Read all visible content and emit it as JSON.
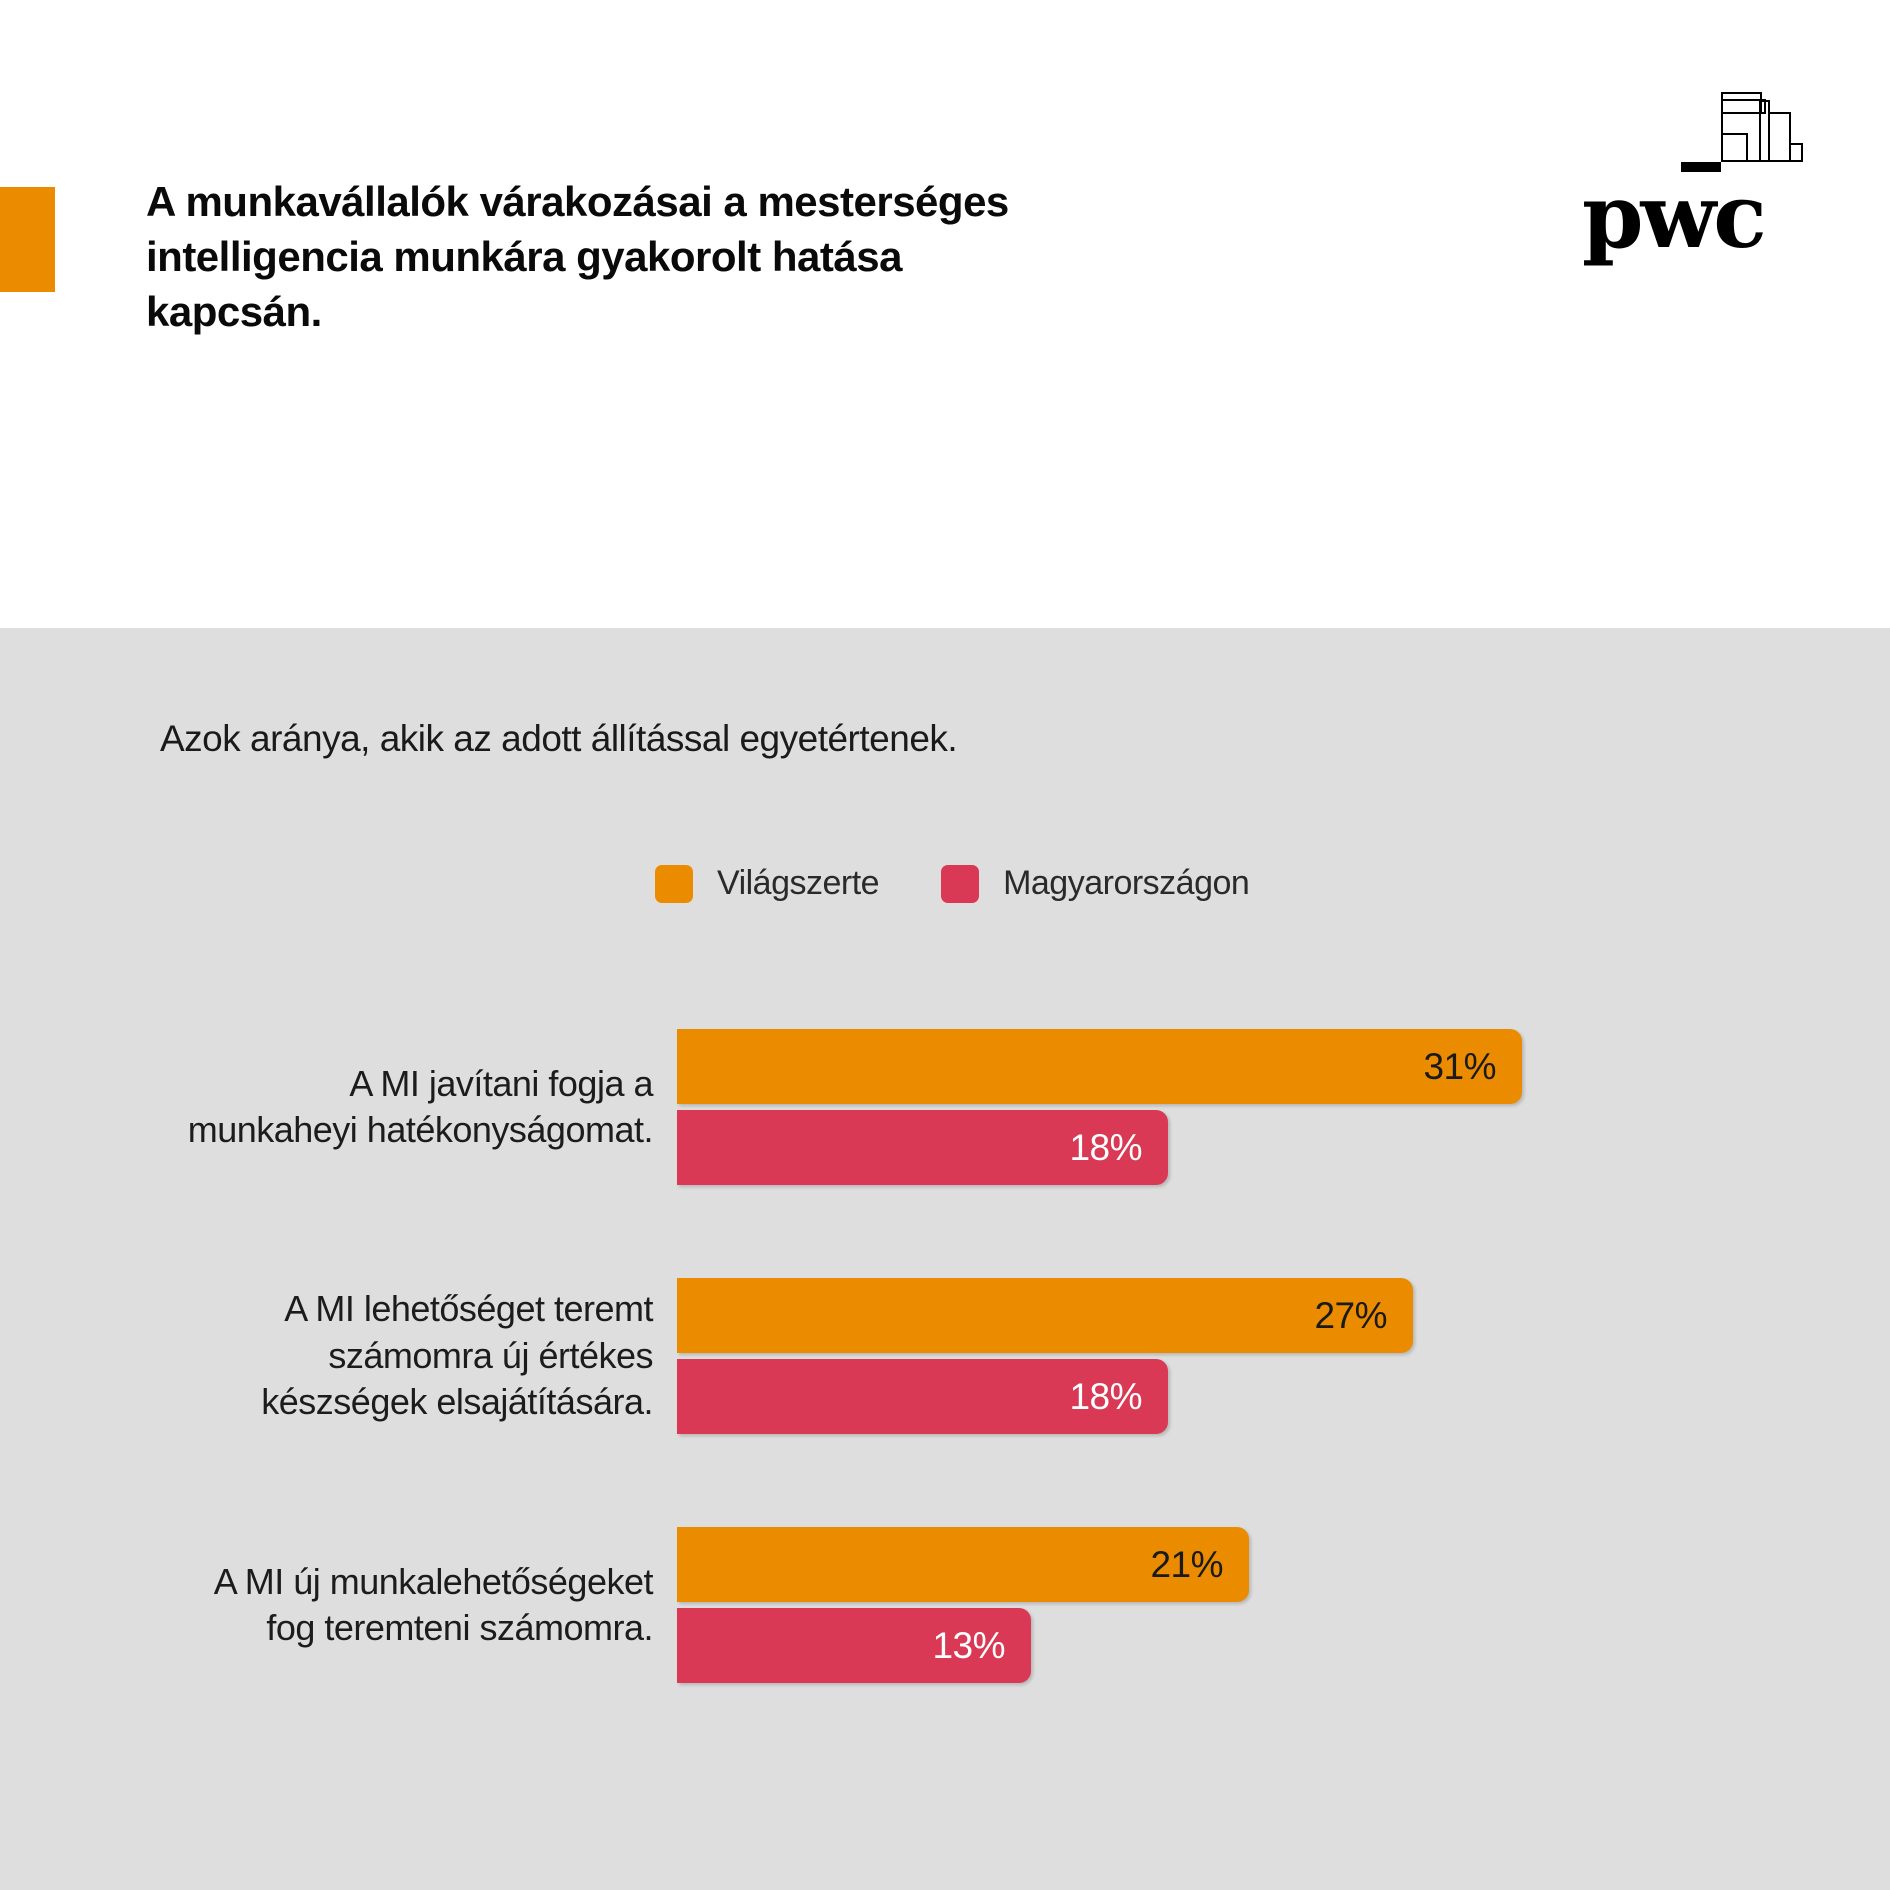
{
  "header": {
    "title": "A munkavállalók várakozásai a mesterséges\nintelligencia munkára gyakorolt hatása\nkapcsán.",
    "logo_text": "pwc"
  },
  "colors": {
    "accent_orange": "#EB8C00",
    "panel_gray": "#DEDEDE"
  },
  "chart_data": {
    "type": "bar",
    "orientation": "horizontal",
    "subtitle": "Azok aránya, akik az adott állítással egyetértenek.",
    "categories": [
      "A MI javítani fogja a\nmunkaheyi hatékonyságomat.",
      "A MI lehetőséget teremt\nszámomra új értékes\nkészségek elsajátítására.",
      "A MI új munkalehetőségeket\nfog teremteni számomra."
    ],
    "series": [
      {
        "name": "Világszerte",
        "color": "#EB8C00",
        "label_color": "#1a1a1a",
        "values": [
          31,
          27,
          21
        ]
      },
      {
        "name": "Magyarországon",
        "color": "#D93954",
        "label_color": "#ffffff",
        "values": [
          18,
          18,
          13
        ]
      }
    ],
    "value_suffix": "%",
    "xlim": [
      0,
      44
    ],
    "grid": false,
    "legend_position": "top",
    "value_labels": "inside-end"
  }
}
